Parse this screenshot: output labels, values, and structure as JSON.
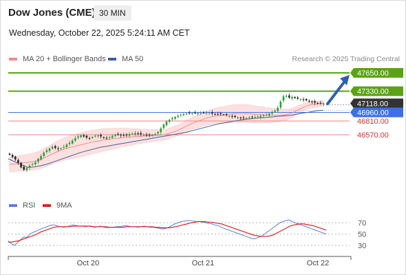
{
  "header": {
    "title": "Dow Jones (CME)",
    "timeframe": "30 MIN",
    "datetime": "Wednesday, October 22, 2025 5:24:11 AM CET",
    "credit": "Research © 2025 Trading Central"
  },
  "legend": {
    "ma20": "MA 20 + Bollinger Bands",
    "ma50": "MA 50",
    "rsi": "RSI",
    "ma9": "9MA"
  },
  "colors": {
    "resistance": "#5ba315",
    "support": "#f08080",
    "pivot": "#3d6fe8",
    "ma20": "#f08a8a",
    "ma50": "#3a5f9f",
    "bollinger_fill": "#fde0e0",
    "candle_up": "#2f9a3a",
    "candle_down": "#222222",
    "rsi": "#5a7fd8",
    "rsi_ma": "#e02020",
    "arrow": "#2f5fb0",
    "current": "#333333"
  },
  "chart_data": [
    {
      "type": "candlestick",
      "x_ticks": [
        "Oct 20",
        "Oct 21",
        "Oct 22"
      ],
      "price_range": [
        45800,
        47900
      ],
      "levels": [
        {
          "label": "47650.00",
          "value": 47650,
          "kind": "resistance"
        },
        {
          "label": "47330.00",
          "value": 47330,
          "kind": "resistance"
        },
        {
          "label": "47118.00",
          "value": 47118,
          "kind": "current"
        },
        {
          "label": "46960.00",
          "value": 46960,
          "kind": "pivot"
        },
        {
          "label": "46810.00",
          "value": 46810,
          "kind": "support"
        },
        {
          "label": "46570.00",
          "value": 46570,
          "kind": "support"
        }
      ],
      "series": [
        {
          "name": "MA 20 + Bollinger Bands"
        },
        {
          "name": "MA 50"
        }
      ],
      "close": [
        46220,
        46180,
        46140,
        46080,
        46000,
        45960,
        45990,
        46030,
        46060,
        46090,
        46150,
        46200,
        46260,
        46300,
        46330,
        46360,
        46340,
        46320,
        46330,
        46360,
        46400,
        46430,
        46470,
        46510,
        46540,
        46560,
        46540,
        46520,
        46510,
        46530,
        46550,
        46560,
        46540,
        46520,
        46510,
        46530,
        46550,
        46570,
        46580,
        46560,
        46560,
        46560,
        46580,
        46590,
        46600,
        46590,
        46580,
        46570,
        46560,
        46560,
        46570,
        46580,
        46620,
        46680,
        46750,
        46800,
        46830,
        46860,
        46880,
        46900,
        46920,
        46930,
        46940,
        46950,
        46950,
        46950,
        46950,
        46950,
        46950,
        46950,
        46950,
        46940,
        46930,
        46930,
        46930,
        46920,
        46910,
        46900,
        46890,
        46880,
        46870,
        46860,
        46860,
        46860,
        46870,
        46880,
        46880,
        46890,
        46900,
        46910,
        46920,
        46940,
        46960,
        46990,
        47040,
        47150,
        47240,
        47250,
        47220,
        47230,
        47210,
        47200,
        47190,
        47180,
        47170,
        47150,
        47140,
        47130,
        47120,
        47120,
        47118
      ],
      "ma20": [
        46050,
        46060,
        46070,
        46080,
        46090,
        46100,
        46120,
        46150,
        46190,
        46230,
        46270,
        46300,
        46330,
        46350,
        46370,
        46390,
        46410,
        46430,
        46450,
        46460,
        46480,
        46490,
        46500,
        46510,
        46520,
        46530,
        46530,
        46540,
        46540,
        46550,
        46550,
        46560,
        46560,
        46570,
        46590,
        46620,
        46650,
        46690,
        46730,
        46770,
        46800,
        46830,
        46860,
        46880,
        46900,
        46910,
        46920,
        46930,
        46940,
        46940,
        46940,
        46940,
        46930,
        46920,
        46920,
        46910,
        46910,
        46910,
        46910,
        46920,
        46940,
        46980,
        47020,
        47060,
        47090,
        47100,
        47110,
        47120
      ],
      "ma50": [
        46150,
        46100,
        46050,
        46000,
        46010,
        46030,
        46060,
        46100,
        46140,
        46180,
        46220,
        46260,
        46290,
        46320,
        46350,
        46370,
        46390,
        46410,
        46430,
        46450,
        46470,
        46490,
        46510,
        46530,
        46550,
        46570,
        46590,
        46610,
        46640,
        46670,
        46700,
        46730,
        46760,
        46780,
        46800,
        46820,
        46840,
        46850,
        46860,
        46870,
        46880,
        46890,
        46900,
        46910,
        46930,
        46950,
        46970,
        46990,
        47000
      ],
      "rsi_ticks": [
        70,
        50,
        30
      ],
      "rsi_range": [
        10,
        85
      ],
      "rsi": [
        38,
        33,
        30,
        35,
        40,
        45,
        44,
        50,
        53,
        55,
        58,
        60,
        62,
        64,
        66,
        66,
        64,
        63,
        62,
        63,
        65,
        66,
        65,
        64,
        64,
        63,
        64,
        63,
        62,
        63,
        64,
        62,
        61,
        62,
        62,
        63,
        63,
        64,
        65,
        64,
        63,
        63,
        62,
        63,
        64,
        63,
        62,
        62,
        61,
        60,
        59,
        60,
        62,
        65,
        68,
        70,
        72,
        73,
        74,
        74,
        73,
        72,
        72,
        71,
        70,
        69,
        68,
        66,
        65,
        62,
        60,
        58,
        56,
        54,
        52,
        50,
        48,
        46,
        44,
        42,
        42,
        44,
        46,
        50,
        54,
        58,
        62,
        66,
        70,
        72,
        74,
        75,
        72,
        70,
        68,
        66,
        64,
        62,
        60,
        58,
        56,
        54,
        52,
        50
      ],
      "rsi_ma": [
        36,
        36,
        37,
        38,
        40,
        42,
        44,
        46,
        48,
        51,
        54,
        56,
        58,
        60,
        62,
        63,
        63,
        63,
        63,
        63,
        64,
        64,
        64,
        64,
        64,
        64,
        63,
        63,
        63,
        63,
        63,
        62,
        62,
        62,
        62,
        62,
        63,
        63,
        63,
        63,
        63,
        63,
        63,
        63,
        63,
        62,
        62,
        61,
        61,
        61,
        62,
        63,
        64,
        66,
        67,
        69,
        70,
        71,
        72,
        72,
        72,
        71,
        71,
        70,
        69,
        68,
        66,
        64,
        62,
        60,
        58,
        56,
        54,
        52,
        50,
        48,
        47,
        46,
        46,
        46,
        47,
        49,
        52,
        55,
        58,
        61,
        64,
        66,
        67,
        68,
        68,
        67,
        66,
        65,
        63,
        61,
        59,
        57
      ]
    }
  ]
}
